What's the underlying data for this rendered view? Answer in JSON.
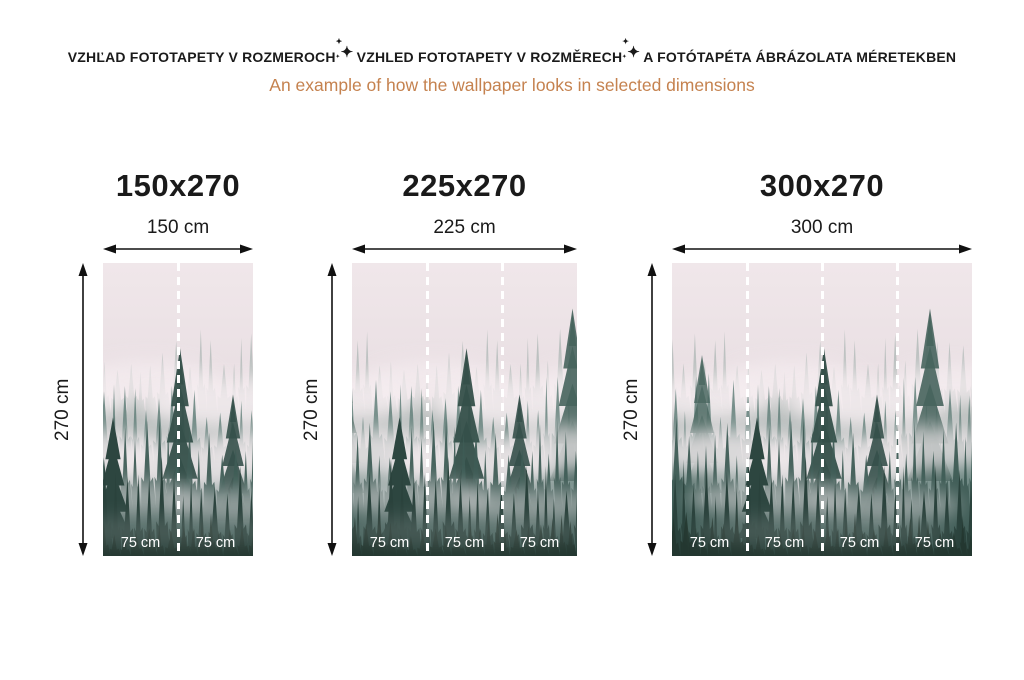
{
  "header": {
    "title_parts": [
      "VZHĽAD FOTOTAPETY V ROZMEROCH",
      "VZHLED FOTOTAPETY V ROZMĚRECH",
      "A FOTÓTAPÉTA ÁBRÁZOLATA MÉRETEKBEN"
    ],
    "separator_icon": "sparkle",
    "subtitle": "An example of how the wallpaper looks in selected dimensions"
  },
  "panels": [
    {
      "title": "150x270",
      "width_label": "150 cm",
      "height_label": "270 cm",
      "segments": [
        "75 cm",
        "75 cm"
      ]
    },
    {
      "title": "225x270",
      "width_label": "225 cm",
      "height_label": "270 cm",
      "segments": [
        "75 cm",
        "75 cm",
        "75 cm"
      ]
    },
    {
      "title": "300x270",
      "width_label": "300 cm",
      "height_label": "270 cm",
      "segments": [
        "75 cm",
        "75 cm",
        "75 cm",
        "75 cm"
      ]
    }
  ],
  "colors": {
    "title_text": "#1a1a1a",
    "subtitle_text": "#c5824f",
    "segment_label_text": "#ffffff",
    "divider": "#ffffff",
    "forest_dark": "#2a423c",
    "forest_mid": "#63807a",
    "sky_pink": "#e9dfe3"
  }
}
